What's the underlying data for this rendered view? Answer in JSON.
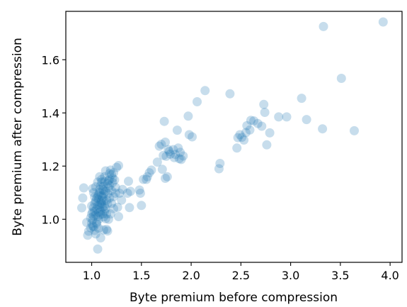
{
  "chart_data": {
    "type": "scatter",
    "title": "",
    "xlabel": "Byte premium before compression",
    "ylabel": "Byte premium after compression",
    "xlim": [
      0.74,
      4.12
    ],
    "ylim": [
      0.838,
      1.782
    ],
    "xticks": [
      1.0,
      1.5,
      2.0,
      2.5,
      3.0,
      3.5,
      4.0
    ],
    "xtick_labels": [
      "1.0",
      "1.5",
      "2.0",
      "2.5",
      "3.0",
      "3.5",
      "4.0"
    ],
    "yticks": [
      1.0,
      1.2,
      1.4,
      1.6
    ],
    "ytick_labels": [
      "1.0",
      "1.2",
      "1.4",
      "1.6"
    ],
    "grid": false,
    "marker_color": "#1f77b4",
    "marker_alpha": 0.25,
    "points": [
      [
        3.93,
        1.742
      ],
      [
        3.33,
        1.725
      ],
      [
        3.51,
        1.53
      ],
      [
        3.64,
        1.333
      ],
      [
        3.32,
        1.34
      ],
      [
        3.16,
        1.375
      ],
      [
        3.11,
        1.455
      ],
      [
        2.96,
        1.385
      ],
      [
        2.88,
        1.385
      ],
      [
        2.79,
        1.325
      ],
      [
        2.76,
        1.28
      ],
      [
        2.73,
        1.432
      ],
      [
        2.74,
        1.402
      ],
      [
        2.71,
        1.35
      ],
      [
        2.67,
        1.36
      ],
      [
        2.63,
        1.37
      ],
      [
        2.6,
        1.372
      ],
      [
        2.59,
        1.336
      ],
      [
        2.56,
        1.352
      ],
      [
        2.55,
        1.326
      ],
      [
        2.53,
        1.298
      ],
      [
        2.51,
        1.308
      ],
      [
        2.49,
        1.318
      ],
      [
        2.47,
        1.307
      ],
      [
        2.46,
        1.268
      ],
      [
        2.39,
        1.472
      ],
      [
        2.29,
        1.21
      ],
      [
        2.28,
        1.19
      ],
      [
        2.14,
        1.484
      ],
      [
        2.06,
        1.442
      ],
      [
        2.01,
        1.31
      ],
      [
        1.98,
        1.318
      ],
      [
        1.97,
        1.388
      ],
      [
        1.92,
        1.238
      ],
      [
        1.9,
        1.225
      ],
      [
        1.89,
        1.252
      ],
      [
        1.88,
        1.228
      ],
      [
        1.87,
        1.268
      ],
      [
        1.86,
        1.335
      ],
      [
        1.84,
        1.244
      ],
      [
        1.83,
        1.232
      ],
      [
        1.82,
        1.262
      ],
      [
        1.79,
        1.245
      ],
      [
        1.78,
        1.255
      ],
      [
        1.77,
        1.262
      ],
      [
        1.75,
        1.237
      ],
      [
        1.74,
        1.29
      ],
      [
        1.73,
        1.368
      ],
      [
        1.72,
        1.24
      ],
      [
        1.76,
        1.16
      ],
      [
        1.74,
        1.154
      ],
      [
        1.7,
        1.282
      ],
      [
        1.68,
        1.275
      ],
      [
        1.66,
        1.215
      ],
      [
        1.71,
        1.188
      ],
      [
        1.6,
        1.185
      ],
      [
        1.58,
        1.175
      ],
      [
        1.56,
        1.16
      ],
      [
        1.55,
        1.15
      ],
      [
        1.52,
        1.15
      ],
      [
        1.49,
        1.098
      ],
      [
        1.48,
        1.11
      ],
      [
        1.5,
        1.052
      ],
      [
        1.39,
        1.105
      ],
      [
        1.36,
        1.098
      ],
      [
        1.38,
        1.044
      ],
      [
        1.37,
        1.143
      ],
      [
        1.31,
        1.112
      ],
      [
        1.28,
        1.098
      ],
      [
        1.3,
        1.072
      ],
      [
        1.25,
        1.195
      ],
      [
        1.27,
        1.202
      ],
      [
        1.24,
        1.12
      ],
      [
        1.23,
        1.148
      ],
      [
        1.22,
        1.085
      ],
      [
        1.21,
        1.138
      ],
      [
        1.26,
        1.045
      ],
      [
        1.27,
        1.01
      ],
      [
        1.2,
        1.168
      ],
      [
        1.19,
        1.185
      ],
      [
        1.18,
        1.15
      ],
      [
        1.17,
        1.118
      ],
      [
        1.16,
        1.095
      ],
      [
        1.15,
        1.072
      ],
      [
        1.14,
        1.182
      ],
      [
        1.13,
        1.142
      ],
      [
        1.12,
        1.108
      ],
      [
        1.11,
        1.082
      ],
      [
        1.1,
        1.058
      ],
      [
        1.09,
        1.126
      ],
      [
        1.08,
        1.1
      ],
      [
        1.07,
        1.074
      ],
      [
        1.06,
        1.052
      ],
      [
        1.05,
        1.038
      ],
      [
        1.04,
        1.016
      ],
      [
        1.03,
        1.06
      ],
      [
        1.02,
        1.044
      ],
      [
        1.01,
        1.028
      ],
      [
        1.0,
        1.05
      ],
      [
        0.99,
        1.005
      ],
      [
        1.0,
        0.985
      ],
      [
        1.01,
        0.998
      ],
      [
        1.02,
        0.972
      ],
      [
        1.03,
        0.958
      ],
      [
        1.04,
        0.945
      ],
      [
        1.05,
        0.988
      ],
      [
        1.06,
        1.01
      ],
      [
        1.07,
        1.025
      ],
      [
        1.08,
        1.04
      ],
      [
        1.09,
        1.062
      ],
      [
        1.1,
        1.088
      ],
      [
        1.11,
        1.112
      ],
      [
        1.12,
        1.07
      ],
      [
        1.13,
        1.03
      ],
      [
        1.14,
        1.002
      ],
      [
        1.15,
        0.962
      ],
      [
        1.16,
        0.956
      ],
      [
        1.09,
        0.93
      ],
      [
        1.12,
        1.009
      ],
      [
        1.17,
        1.145
      ],
      [
        1.18,
        1.172
      ],
      [
        1.21,
        1.154
      ],
      [
        1.13,
        1.16
      ],
      [
        1.1,
        1.14
      ],
      [
        1.08,
        1.112
      ],
      [
        1.06,
        1.088
      ],
      [
        1.07,
        1.092
      ],
      [
        1.05,
        1.08
      ],
      [
        1.04,
        1.068
      ],
      [
        1.03,
        1.084
      ],
      [
        1.02,
        1.1
      ],
      [
        1.09,
        1.03
      ],
      [
        1.11,
        1.02
      ],
      [
        1.14,
        1.04
      ],
      [
        1.16,
        1.06
      ],
      [
        1.18,
        1.08
      ],
      [
        1.2,
        1.06
      ],
      [
        1.22,
        1.04
      ],
      [
        1.19,
        1.02
      ],
      [
        1.17,
        1.0
      ],
      [
        1.15,
        1.02
      ],
      [
        1.13,
        1.05
      ],
      [
        1.11,
        1.046
      ],
      [
        1.09,
        1.018
      ],
      [
        1.07,
        1.0
      ],
      [
        1.05,
        0.982
      ],
      [
        1.01,
        0.975
      ],
      [
        0.96,
        0.94
      ],
      [
        0.97,
        0.955
      ],
      [
        0.99,
        0.968
      ],
      [
        0.95,
        0.988
      ],
      [
        1.01,
        1.115
      ],
      [
        0.92,
        1.118
      ],
      [
        0.91,
        1.08
      ],
      [
        0.9,
        1.043
      ],
      [
        1.06,
        0.888
      ],
      [
        1.07,
        0.966
      ],
      [
        1.12,
        0.96
      ],
      [
        1.02,
        1.012
      ],
      [
        1.0,
        1.02
      ],
      [
        1.03,
        1.03
      ],
      [
        1.08,
        1.055
      ],
      [
        1.1,
        1.07
      ],
      [
        1.12,
        1.094
      ],
      [
        1.14,
        1.105
      ],
      [
        1.16,
        1.135
      ],
      [
        1.18,
        1.126
      ],
      [
        1.2,
        1.108
      ],
      [
        1.22,
        1.175
      ],
      [
        1.24,
        1.098
      ],
      [
        1.06,
        1.14
      ],
      [
        1.04,
        1.122
      ],
      [
        1.08,
        1.16
      ],
      [
        1.1,
        1.15
      ],
      [
        1.12,
        1.125
      ]
    ]
  }
}
